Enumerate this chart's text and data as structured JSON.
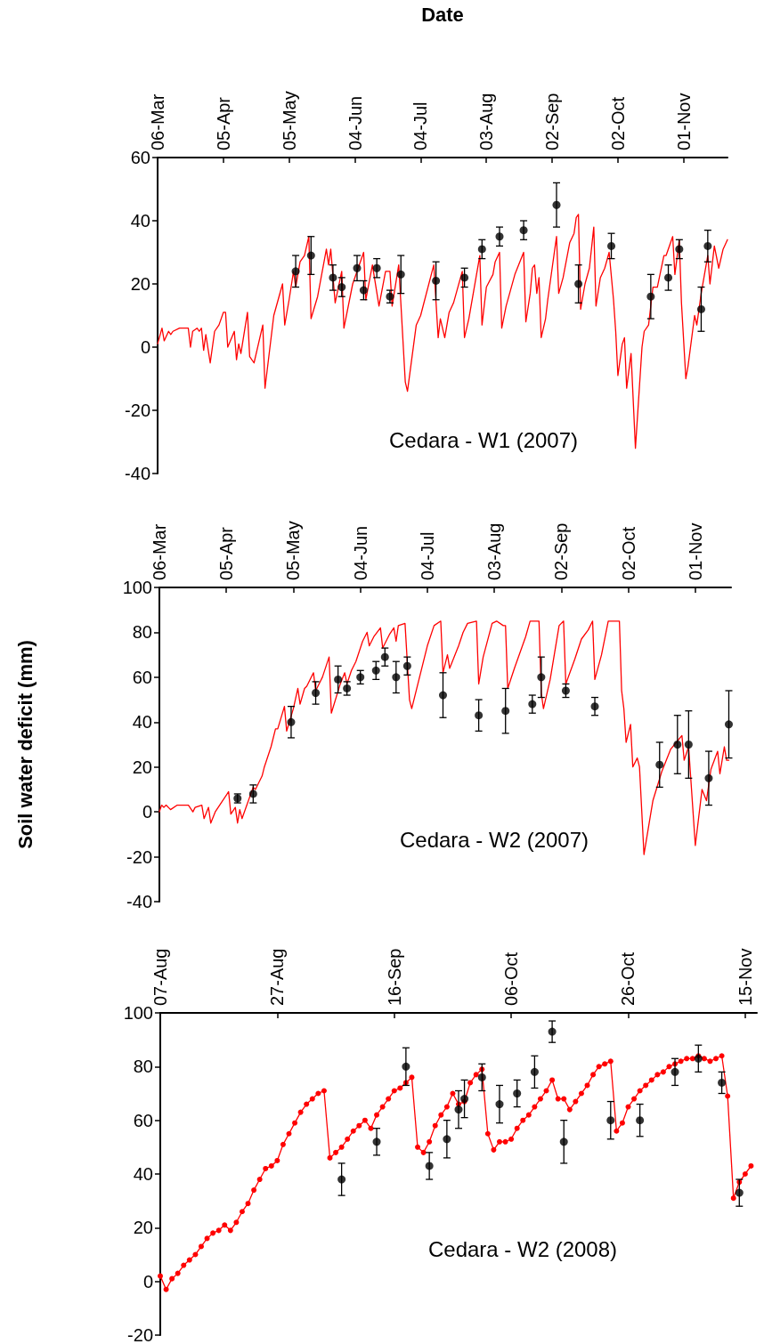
{
  "chart_data": [
    {
      "type": "line",
      "xlabel": "Date",
      "annotations": [
        "Cedara - W1 (2007)"
      ],
      "xlim": [
        "--03-06",
        "--11-21"
      ],
      "xticks": [
        {
          "value": "--03-06",
          "label": "06-Mar"
        },
        {
          "value": "--04-05",
          "label": "05-Apr"
        },
        {
          "value": "--05-05",
          "label": "05-May"
        },
        {
          "value": "--06-04",
          "label": "04-Jun"
        },
        {
          "value": "--07-04",
          "label": "04-Jul"
        },
        {
          "value": "--08-03",
          "label": "03-Aug"
        },
        {
          "value": "--09-02",
          "label": "02-Sep"
        },
        {
          "value": "--10-02",
          "label": "02-Oct"
        },
        {
          "value": "--11-01",
          "label": "01-Nov"
        }
      ],
      "ylim": [
        -40,
        60
      ],
      "yticks": [
        -40,
        -20,
        0,
        20,
        40,
        60
      ],
      "series": [
        {
          "color": "#ff0000",
          "marker": "none",
          "x": [
            "--03-06",
            "--03-08",
            "--03-09",
            "--03-11",
            "--03-12",
            "--03-13",
            "--03-16",
            "--03-20",
            "--03-21",
            "--03-22",
            "--03-24",
            "--03-25",
            "--03-26",
            "--03-27",
            "--03-28",
            "--03-30",
            "--04-01",
            "--04-03",
            "--04-05",
            "--04-06",
            "--04-07",
            "--04-10",
            "--04-11",
            "--04-12",
            "--04-13",
            "--04-16",
            "--04-17",
            "--04-19",
            "--04-21",
            "--04-23",
            "--04-24",
            "--04-28",
            "--05-02",
            "--05-03",
            "--05-05",
            "--05-07",
            "--05-08",
            "--05-10",
            "--05-12",
            "--05-14",
            "--05-15",
            "--05-18",
            "--05-22",
            "--05-23",
            "--05-24",
            "--05-26",
            "--05-29",
            "--05-30",
            "--06-03",
            "--06-06",
            "--06-08",
            "--06-09",
            "--06-12",
            "--06-15",
            "--06-18",
            "--06-20",
            "--06-21",
            "--06-24",
            "--06-27",
            "--06-28",
            "--07-02",
            "--07-04",
            "--07-10",
            "--07-12",
            "--07-13",
            "--07-15",
            "--07-17",
            "--07-19",
            "--07-21",
            "--07-23",
            "--07-24",
            "--07-26",
            "--07-31",
            "--08-01",
            "--08-03",
            "--08-06",
            "--08-07",
            "--08-09",
            "--08-10",
            "--08-12",
            "--08-16",
            "--08-20",
            "--08-21",
            "--08-23",
            "--08-24",
            "--08-25",
            "--08-26",
            "--08-27",
            "--08-28",
            "--08-30",
            "--08-31",
            "--09-04",
            "--09-05",
            "--09-07",
            "--09-10",
            "--09-12",
            "--09-13",
            "--09-14",
            "--09-15",
            "--09-17",
            "--09-19",
            "--09-21",
            "--09-22",
            "--09-24",
            "--09-26",
            "--09-28",
            "--09-30",
            "--10-01",
            "--10-02",
            "--10-04",
            "--10-05",
            "--10-06",
            "--10-08",
            "--10-10",
            "--10-13",
            "--10-14",
            "--10-16",
            "--10-18",
            "--10-20",
            "--10-23",
            "--10-24",
            "--10-27",
            "--10-28",
            "--10-30",
            "--10-31",
            "--11-02",
            "--11-03",
            "--11-06",
            "--11-07",
            "--11-09",
            "--11-12",
            "--11-13",
            "--11-15",
            "--11-17",
            "--11-19",
            "--11-21"
          ],
          "values": [
            1,
            6,
            2,
            5,
            4,
            5,
            6,
            6,
            0,
            5,
            6,
            5,
            6,
            -1,
            4,
            -5,
            5,
            7,
            11,
            11,
            0,
            5,
            -4,
            1,
            -2,
            11,
            -3,
            -5,
            1,
            7,
            -13,
            10,
            20,
            7,
            15,
            24,
            19,
            27,
            29,
            35,
            9,
            16,
            31,
            26,
            31,
            14,
            24,
            6,
            20,
            26,
            30,
            15,
            26,
            13,
            24,
            24,
            13,
            26,
            -11,
            -14,
            7,
            10,
            26,
            3,
            9,
            3,
            11,
            14,
            19,
            24,
            3,
            9,
            29,
            7,
            19,
            23,
            27,
            30,
            6,
            13,
            23,
            30,
            8,
            17,
            25,
            26,
            17,
            22,
            3,
            9,
            15,
            35,
            17,
            22,
            33,
            36,
            41,
            42,
            12,
            20,
            25,
            38,
            13,
            22,
            25,
            30,
            15,
            5,
            -9,
            1,
            3,
            -13,
            -2,
            -32,
            0,
            5,
            7,
            19,
            19,
            29,
            29,
            35,
            23,
            34,
            14,
            -10,
            -6,
            10,
            7,
            17,
            29,
            20,
            32,
            25,
            31,
            34
          ]
        },
        {
          "type": "scatter",
          "color": "#000000",
          "marker": "circle",
          "x": [
            "--05-08",
            "--05-15",
            "--05-25",
            "--05-29",
            "--06-05",
            "--06-08",
            "--06-14",
            "--06-20",
            "--06-25",
            "--07-11",
            "--07-24",
            "--08-01",
            "--08-09",
            "--08-20",
            "--09-04",
            "--09-14",
            "--09-29",
            "--10-17",
            "--10-25",
            "--10-30",
            "--11-09",
            "--11-12"
          ],
          "values": [
            24,
            29,
            22,
            19,
            25,
            18,
            25,
            16,
            23,
            21,
            22,
            31,
            35,
            37,
            45,
            20,
            32,
            16,
            22,
            31,
            12,
            32
          ],
          "errors": [
            5,
            6,
            4,
            3,
            4,
            3,
            3,
            2,
            6,
            6,
            3,
            3,
            3,
            3,
            7,
            6,
            4,
            7,
            4,
            3,
            7,
            5
          ]
        }
      ]
    },
    {
      "type": "line",
      "ylabel": "Soil water deficit (mm)",
      "annotations": [
        "Cedara - W2 (2007)"
      ],
      "xlim": [
        "--03-06",
        "--11-17"
      ],
      "xticks": [
        {
          "value": "--03-06",
          "label": "06-Mar"
        },
        {
          "value": "--04-05",
          "label": "05-Apr"
        },
        {
          "value": "--05-05",
          "label": "05-May"
        },
        {
          "value": "--06-04",
          "label": "04-Jun"
        },
        {
          "value": "--07-04",
          "label": "04-Jul"
        },
        {
          "value": "--08-03",
          "label": "03-Aug"
        },
        {
          "value": "--09-02",
          "label": "02-Sep"
        },
        {
          "value": "--10-02",
          "label": "02-Oct"
        },
        {
          "value": "--11-01",
          "label": "01-Nov"
        }
      ],
      "ylim": [
        -40,
        100
      ],
      "yticks": [
        -40,
        -20,
        0,
        20,
        40,
        60,
        80,
        100
      ],
      "series": [
        {
          "color": "#ff0000",
          "marker": "none",
          "x": [
            "--03-06",
            "--03-07",
            "--03-08",
            "--03-09",
            "--03-11",
            "--03-14",
            "--03-19",
            "--03-21",
            "--03-22",
            "--03-25",
            "--03-26",
            "--03-28",
            "--03-29",
            "--03-31",
            "--04-06",
            "--04-07",
            "--04-09",
            "--04-10",
            "--04-11",
            "--04-12",
            "--04-17",
            "--04-18",
            "--04-21",
            "--04-22",
            "--04-25",
            "--04-27",
            "--04-28",
            "--05-01",
            "--05-02",
            "--05-05",
            "--05-07",
            "--05-08",
            "--05-10",
            "--05-11",
            "--05-14",
            "--05-15",
            "--05-18",
            "--05-21",
            "--05-22",
            "--05-26",
            "--05-28",
            "--05-29",
            "--05-31",
            "--06-02",
            "--06-05",
            "--06-07",
            "--06-08",
            "--06-10",
            "--06-13",
            "--06-14",
            "--06-17",
            "--06-19",
            "--06-20",
            "--06-21",
            "--06-24",
            "--06-26",
            "--06-27",
            "--07-04",
            "--07-07",
            "--07-10",
            "--07-11",
            "--07-13",
            "--07-14",
            "--07-18",
            "--07-20",
            "--07-22",
            "--07-26",
            "--07-27",
            "--07-29",
            "--08-02",
            "--08-04",
            "--08-07",
            "--08-08",
            "--08-09",
            "--08-12",
            "--08-17",
            "--08-19",
            "--08-23",
            "--08-24",
            "--08-25",
            "--08-28",
            "--09-01",
            "--09-03",
            "--09-04",
            "--09-08",
            "--09-11",
            "--09-14",
            "--09-16",
            "--09-17",
            "--09-20",
            "--09-23",
            "--09-28",
            "--09-29",
            "--09-30",
            "--10-01",
            "--10-03",
            "--10-04",
            "--10-06",
            "--10-07",
            "--10-09",
            "--10-12",
            "--10-13",
            "--10-17",
            "--10-21",
            "--10-26",
            "--10-27",
            "--10-29",
            "--11-01",
            "--11-04",
            "--11-06",
            "--11-08",
            "--11-11",
            "--11-12",
            "--11-14",
            "--11-15",
            "--11-16"
          ],
          "values": [
            0,
            3,
            2,
            3,
            1,
            3,
            3,
            0,
            2,
            3,
            -3,
            2,
            -5,
            0,
            9,
            -1,
            2,
            -5,
            1,
            -3,
            11,
            10,
            16,
            20,
            29,
            37,
            37,
            47,
            36,
            46,
            55,
            48,
            55,
            56,
            62,
            54,
            60,
            69,
            44,
            57,
            62,
            57,
            63,
            67,
            76,
            80,
            74,
            78,
            82,
            73,
            79,
            82,
            76,
            83,
            84,
            50,
            46,
            74,
            83,
            85,
            62,
            70,
            64,
            74,
            80,
            84,
            85,
            57,
            69,
            84,
            85,
            83,
            83,
            55,
            64,
            78,
            85,
            85,
            53,
            46,
            59,
            83,
            85,
            57,
            68,
            77,
            81,
            85,
            59,
            70,
            85,
            85,
            54,
            46,
            31,
            39,
            20,
            24,
            20,
            -19,
            -1,
            5,
            18,
            28,
            34,
            23,
            29,
            -15,
            10,
            5,
            19,
            27,
            17,
            29,
            23,
            23
          ]
        },
        {
          "type": "scatter",
          "color": "#000000",
          "marker": "circle",
          "x": [
            "--04-10",
            "--04-17",
            "--05-04",
            "--05-15",
            "--05-25",
            "--05-29",
            "--06-04",
            "--06-11",
            "--06-15",
            "--06-20",
            "--06-25",
            "--07-11",
            "--07-27",
            "--08-08",
            "--08-20",
            "--08-24",
            "--09-04",
            "--09-17",
            "--10-16",
            "--10-24",
            "--10-29",
            "--11-07",
            "--11-16"
          ],
          "values": [
            6,
            8,
            40,
            53,
            59,
            55,
            60,
            63,
            69,
            60,
            65,
            52,
            43,
            45,
            48,
            60,
            54,
            47,
            21,
            30,
            30,
            15,
            39
          ],
          "errors": [
            2,
            4,
            7,
            5,
            6,
            3,
            3,
            4,
            4,
            7,
            4,
            10,
            7,
            10,
            4,
            9,
            3,
            4,
            10,
            13,
            15,
            12,
            15
          ]
        }
      ]
    },
    {
      "type": "line",
      "annotations": [
        "Cedara - W2 (2008)"
      ],
      "xlim": [
        "--08-07",
        "--11-17"
      ],
      "xticks": [
        {
          "value": "--08-07",
          "label": "07-Aug"
        },
        {
          "value": "--08-27",
          "label": "27-Aug"
        },
        {
          "value": "--09-16",
          "label": "16-Sep"
        },
        {
          "value": "--10-06",
          "label": "06-Oct"
        },
        {
          "value": "--10-26",
          "label": "26-Oct"
        },
        {
          "value": "--11-15",
          "label": "15-Nov"
        }
      ],
      "ylim": [
        -20,
        100
      ],
      "yticks": [
        -20,
        0,
        20,
        40,
        60,
        80,
        100
      ],
      "series": [
        {
          "color": "#ff0000",
          "marker": "circle",
          "x": [
            "--08-07",
            "--08-08",
            "--08-09",
            "--08-10",
            "--08-11",
            "--08-12",
            "--08-13",
            "--08-14",
            "--08-15",
            "--08-16",
            "--08-17",
            "--08-18",
            "--08-19",
            "--08-20",
            "--08-21",
            "--08-22",
            "--08-23",
            "--08-24",
            "--08-25",
            "--08-26",
            "--08-27",
            "--08-28",
            "--08-29",
            "--08-30",
            "--08-31",
            "--09-01",
            "--09-02",
            "--09-03",
            "--09-04",
            "--09-05",
            "--09-06",
            "--09-07",
            "--09-08",
            "--09-09",
            "--09-10",
            "--09-11",
            "--09-12",
            "--09-13",
            "--09-14",
            "--09-15",
            "--09-16",
            "--09-17",
            "--09-18",
            "--09-19",
            "--09-20",
            "--09-21",
            "--09-22",
            "--09-23",
            "--09-24",
            "--09-25",
            "--09-26",
            "--09-27",
            "--09-28",
            "--09-29",
            "--09-30",
            "--10-01",
            "--10-02",
            "--10-03",
            "--10-04",
            "--10-05",
            "--10-06",
            "--10-07",
            "--10-08",
            "--10-09",
            "--10-10",
            "--10-11",
            "--10-12",
            "--10-13",
            "--10-14",
            "--10-15",
            "--10-16",
            "--10-17",
            "--10-18",
            "--10-19",
            "--10-20",
            "--10-21",
            "--10-22",
            "--10-23",
            "--10-24",
            "--10-25",
            "--10-26",
            "--10-27",
            "--10-28",
            "--10-29",
            "--10-30",
            "--10-31",
            "--11-01",
            "--11-02",
            "--11-03",
            "--11-04",
            "--11-05",
            "--11-06",
            "--11-07",
            "--11-08",
            "--11-09",
            "--11-10",
            "--11-11",
            "--11-12",
            "--11-13",
            "--11-14",
            "--11-15",
            "--11-16"
          ],
          "values": [
            2,
            -3,
            1,
            3,
            6,
            8,
            10,
            13,
            16,
            18,
            19,
            21,
            19,
            22,
            26,
            29,
            34,
            38,
            42,
            43,
            45,
            51,
            55,
            59,
            63,
            66,
            68,
            70,
            71,
            46,
            48,
            50,
            53,
            56,
            58,
            60,
            57,
            62,
            65,
            68,
            71,
            72,
            74,
            76,
            50,
            48,
            52,
            58,
            62,
            65,
            70,
            66,
            67,
            74,
            77,
            79,
            55,
            49,
            52,
            52,
            53,
            57,
            60,
            62,
            65,
            68,
            71,
            75,
            68,
            68,
            64,
            67,
            70,
            73,
            77,
            80,
            81,
            82,
            56,
            59,
            65,
            68,
            71,
            73,
            75,
            77,
            78,
            80,
            81,
            82,
            83,
            83,
            84,
            83,
            82,
            83,
            84,
            69,
            31,
            37,
            40,
            43
          ]
        },
        {
          "type": "scatter",
          "color": "#000000",
          "marker": "circle",
          "x": [
            "--09-07",
            "--09-13",
            "--09-18",
            "--09-22",
            "--09-25",
            "--09-27",
            "--09-28",
            "--10-01",
            "--10-04",
            "--10-07",
            "--10-10",
            "--10-13",
            "--10-15",
            "--10-23",
            "--10-28",
            "--11-03",
            "--11-07",
            "--11-11",
            "--11-14"
          ],
          "values": [
            38,
            52,
            80,
            43,
            53,
            64,
            68,
            76,
            66,
            70,
            78,
            93,
            52,
            60,
            60,
            78,
            83,
            74,
            33
          ],
          "errors": [
            6,
            5,
            7,
            5,
            7,
            7,
            7,
            5,
            7,
            5,
            6,
            4,
            8,
            7,
            6,
            5,
            5,
            4,
            5
          ]
        }
      ]
    }
  ]
}
